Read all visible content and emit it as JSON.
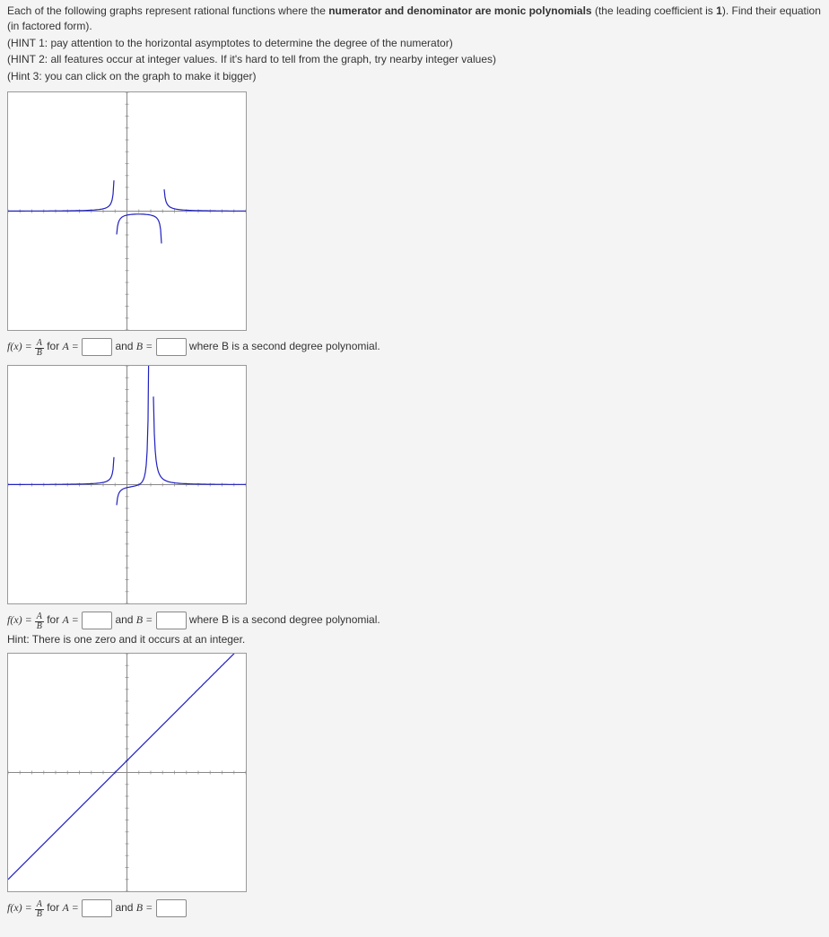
{
  "intro": {
    "line1a": "Each of the following graphs represent rational functions where the ",
    "line1b": "numerator and denominator are monic polynomials",
    "line1c": " (the leading coefficient is ",
    "line1d": "1",
    "line1e": "). Find their equation (in factored form).",
    "hint1": "(HINT 1: pay attention to the horizontal asymptotes to determine the degree of the numerator)",
    "hint2": "(HINT 2: all features occur at integer values. If it's hard to tell from the graph, try nearby integer values)",
    "hint3": "(Hint 3: you can click on the graph to make it bigger)"
  },
  "eq": {
    "fx": "f(x) = ",
    "for": " for ",
    "Aeq": "A =",
    "and": " and ",
    "Beq": "B =",
    "where2nd": " where B is a second degree polynomial.",
    "hintZero": "Hint: There is one zero and it occurs at an integer.",
    "fracNum": "A",
    "fracDen": "B"
  },
  "graphs": {
    "colors": {
      "bg": "#ffffff",
      "axis": "#888888",
      "tick": "#aaaaaa",
      "curve": "#2020c0"
    },
    "g1": {
      "xlim": [
        -10,
        10
      ],
      "ylim": [
        -10,
        10
      ],
      "va": [
        -1,
        3
      ],
      "ha": 0,
      "numerator": "1",
      "denominator": "(x+1)(x-3)"
    },
    "g2": {
      "xlim": [
        -10,
        10
      ],
      "ylim": [
        -10,
        10
      ],
      "va": [
        -1,
        2
      ],
      "ha": 0,
      "zero": 1,
      "numerator": "(x-1)",
      "denominator": "(x+1)(x-2)^2"
    },
    "g3": {
      "xlim": [
        -10,
        10
      ],
      "ylim": [
        -10,
        10
      ],
      "hole": -2,
      "numerator": "(x+2)(x+1)",
      "denominator": "(x+2)",
      "slope": 1,
      "intercept": 1
    }
  }
}
